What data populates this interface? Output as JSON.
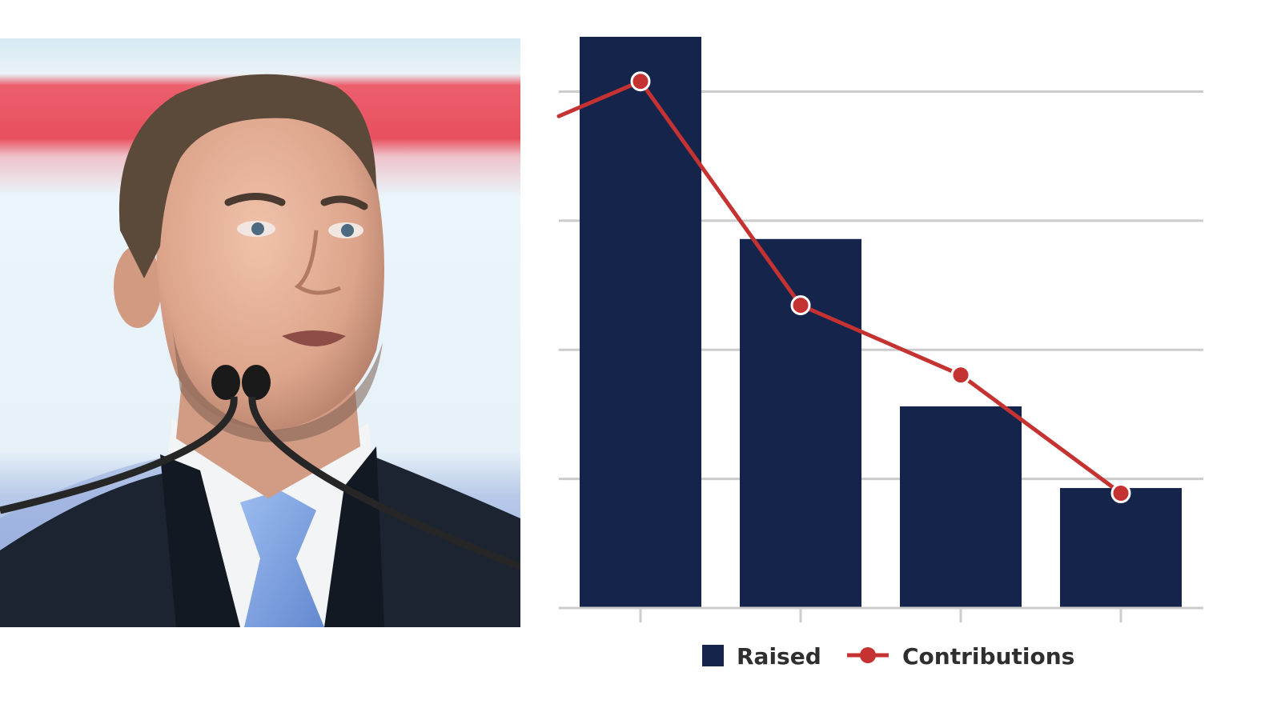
{
  "photo": {
    "subject": "speaker-at-podium",
    "colors": {
      "banner_top": "#d8ecf6",
      "banner_red": "#e8505e",
      "banner_light": "#eaf6fb",
      "suit": "#1c2431",
      "shirt": "#f3f4f6",
      "tie": "#7ea5e0",
      "skin": "#e2ad95",
      "hair": "#5b4939"
    }
  },
  "chart_data": {
    "type": "bar",
    "categories": [
      "",
      "",
      "",
      ""
    ],
    "series": [
      {
        "name": "Raised",
        "kind": "bar",
        "color": "#14244a",
        "values": [
          1.0,
          0.646,
          0.353,
          0.21
        ]
      },
      {
        "name": "Contributions",
        "kind": "line",
        "color": "#c53232",
        "values": [
          0.922,
          0.53,
          0.408,
          0.201
        ]
      }
    ],
    "line_lead_in_value": 0.861,
    "title": "",
    "xlabel": "",
    "ylabel": "",
    "ylim": [
      0,
      1.0
    ],
    "yticks": [
      0,
      0.226,
      0.452,
      0.678,
      0.904
    ],
    "grid": true,
    "legend": "bottom-center",
    "colors": {
      "grid": "#cccccc",
      "axis": "#cccccc",
      "legend_text": "#2f2f2f",
      "marker_stroke": "#ffffff"
    }
  }
}
